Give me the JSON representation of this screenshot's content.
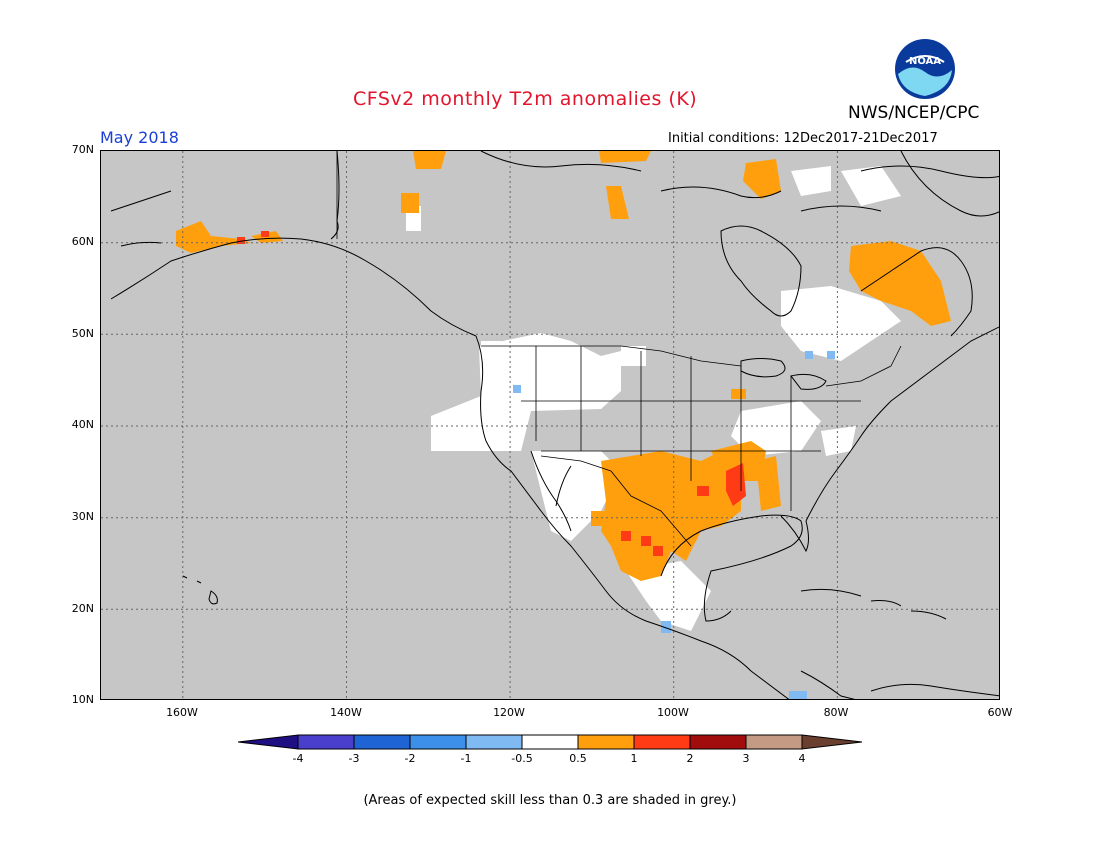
{
  "header": {
    "title": "CFSv2 monthly T2m anomalies (K)",
    "agency": "NWS/NCEP/CPC",
    "logo_text": "NOAA",
    "valid_month": "May 2018",
    "initial_conditions": "Initial conditions: 12Dec2017-21Dec2017"
  },
  "axes": {
    "lat_labels": [
      "70N",
      "60N",
      "50N",
      "40N",
      "30N",
      "20N",
      "10N"
    ],
    "lon_labels": [
      "160W",
      "140W",
      "120W",
      "100W",
      "80W",
      "60W"
    ]
  },
  "colorbar": {
    "labels": [
      "-4",
      "-3",
      "-2",
      "-1",
      "-0.5",
      "0.5",
      "1",
      "2",
      "3",
      "4"
    ],
    "colors": [
      "#1e0f82",
      "#4a3fcc",
      "#1f64d4",
      "#3c90ea",
      "#7fbbf2",
      "#ffffff",
      "#ff9f0e",
      "#ff3b16",
      "#a10d0d",
      "#c49a84",
      "#6b3f30"
    ]
  },
  "map": {
    "land_color": "#c6c6c6",
    "colors": {
      "grey": "#c6c6c6",
      "white": "#ffffff",
      "orange": "#ff9f0e",
      "red": "#ff3b16",
      "lightblue": "#7fbbf2"
    }
  },
  "footer": {
    "note": "(Areas of expected skill less than 0.3 are shaded in grey.)"
  }
}
